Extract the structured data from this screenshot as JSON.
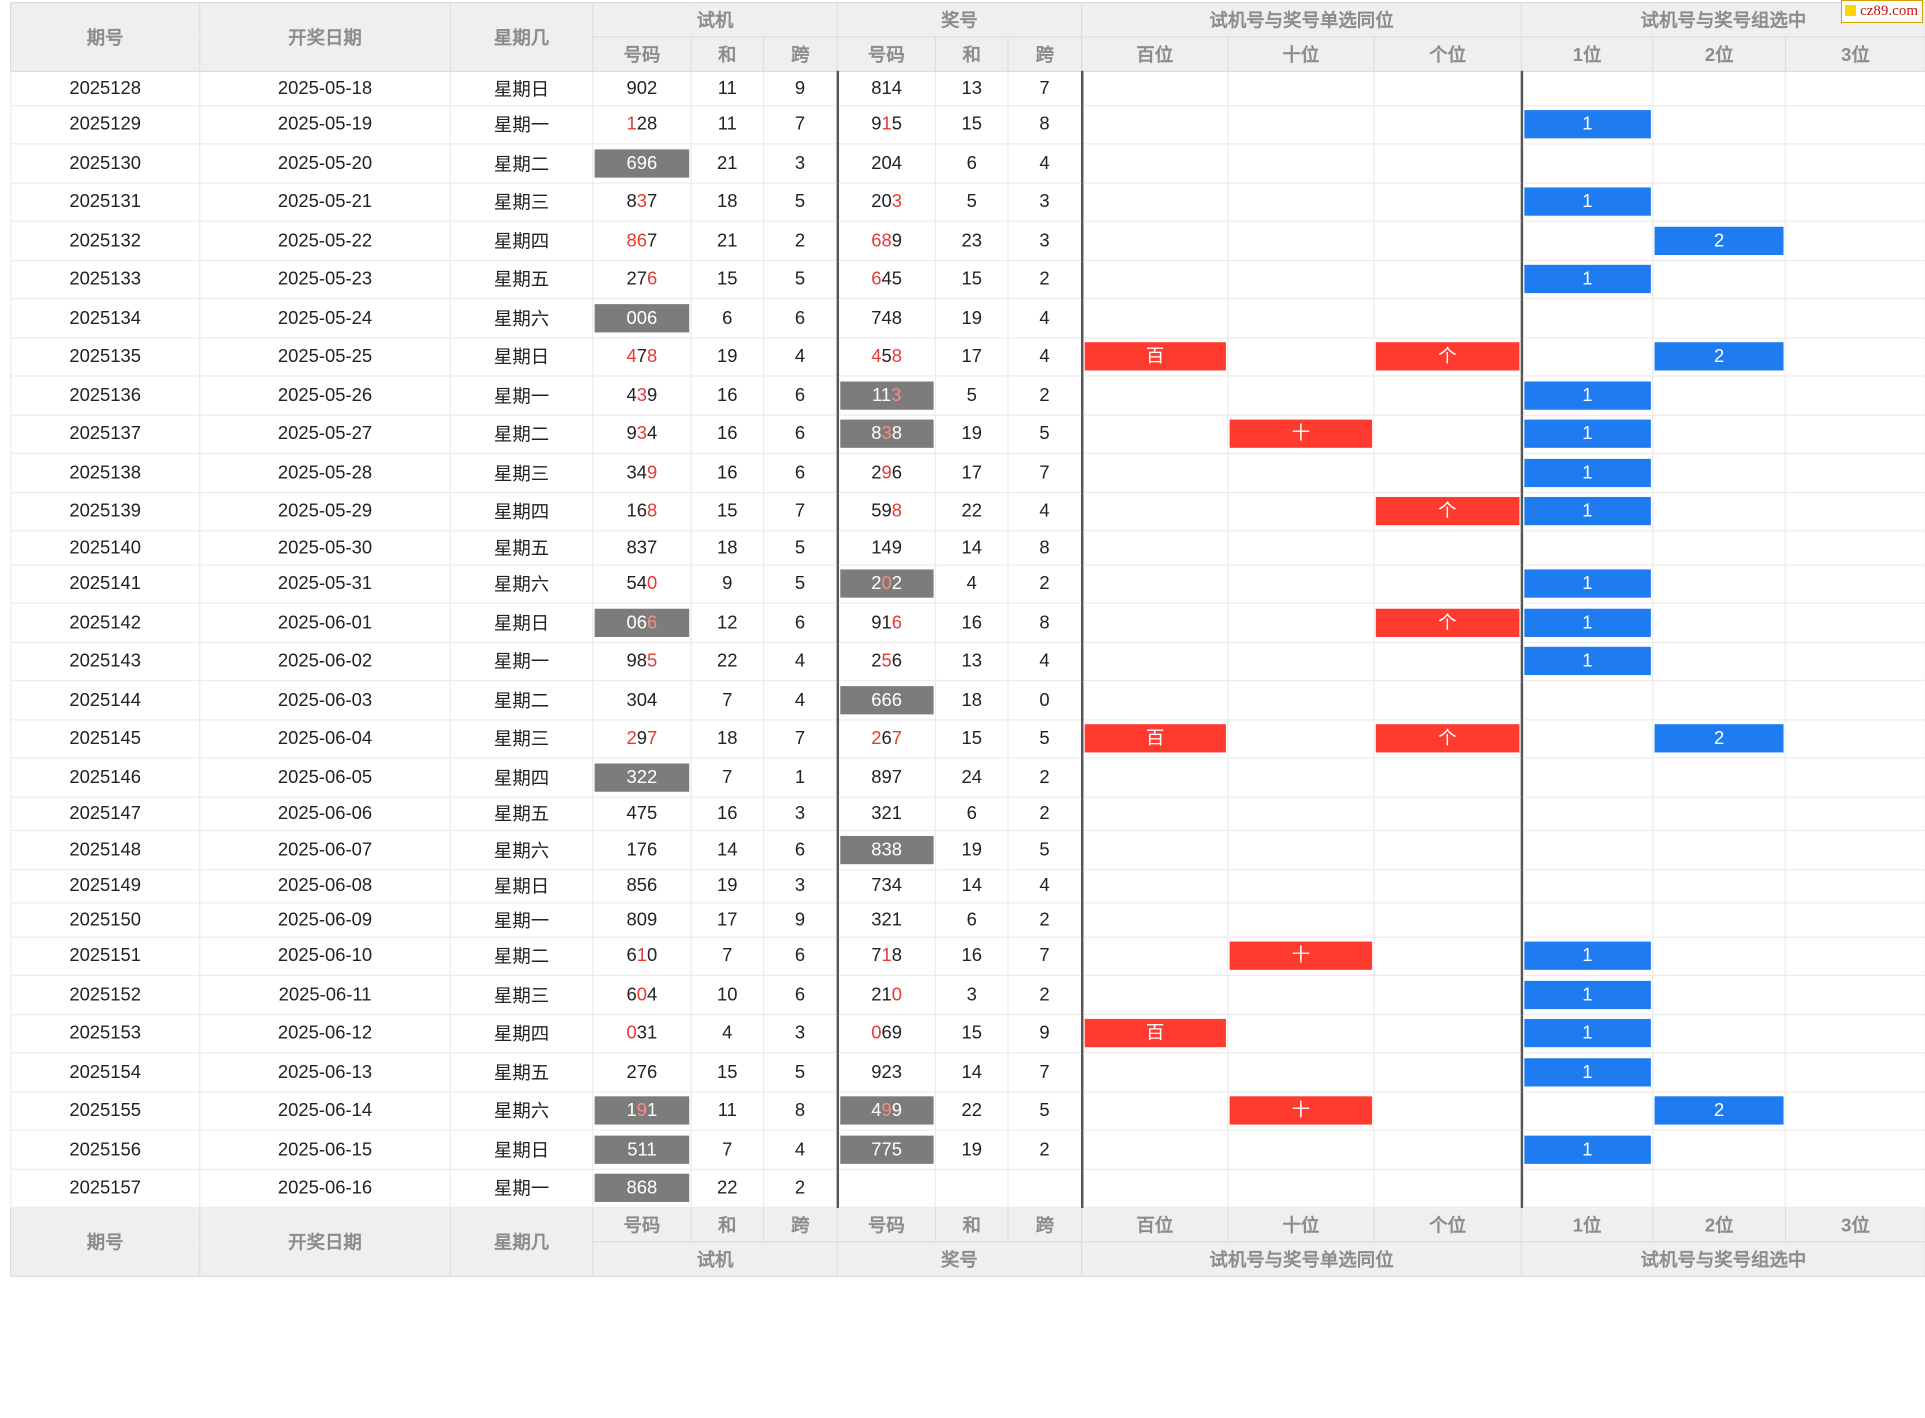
{
  "brand": "cz89.com",
  "header": {
    "issue": "期号",
    "date": "开奖日期",
    "weekday": "星期几",
    "trial": "试机",
    "prize": "奖号",
    "single": "试机号与奖号单选同位",
    "group": "试机号与奖号组选中",
    "number": "号码",
    "sum": "和",
    "span": "跨",
    "hundreds": "百位",
    "tens": "十位",
    "units": "个位",
    "pos1": "1位",
    "pos2": "2位",
    "pos3": "3位"
  },
  "rows": [
    {
      "issue": "2025128",
      "date": "2025-05-18",
      "weekday": "星期日",
      "trial": "902",
      "tsum": "11",
      "tspan": "9",
      "tgray": false,
      "thl": [],
      "prize": "814",
      "psum": "13",
      "pspan": "7",
      "pgray": false,
      "phl": [],
      "h": "",
      "t": "",
      "u": "",
      "g1": "",
      "g2": "",
      "g3": ""
    },
    {
      "issue": "2025129",
      "date": "2025-05-19",
      "weekday": "星期一",
      "trial": "128",
      "tsum": "11",
      "tspan": "7",
      "tgray": false,
      "thl": [
        0
      ],
      "prize": "915",
      "psum": "15",
      "pspan": "8",
      "pgray": false,
      "phl": [
        1
      ],
      "h": "",
      "t": "",
      "u": "",
      "g1": "1",
      "g2": "",
      "g3": ""
    },
    {
      "issue": "2025130",
      "date": "2025-05-20",
      "weekday": "星期二",
      "trial": "696",
      "tsum": "21",
      "tspan": "3",
      "tgray": true,
      "thl": [],
      "prize": "204",
      "psum": "6",
      "pspan": "4",
      "pgray": false,
      "phl": [],
      "h": "",
      "t": "",
      "u": "",
      "g1": "",
      "g2": "",
      "g3": ""
    },
    {
      "issue": "2025131",
      "date": "2025-05-21",
      "weekday": "星期三",
      "trial": "837",
      "tsum": "18",
      "tspan": "5",
      "tgray": false,
      "thl": [
        1
      ],
      "prize": "203",
      "psum": "5",
      "pspan": "3",
      "pgray": false,
      "phl": [
        2
      ],
      "h": "",
      "t": "",
      "u": "",
      "g1": "1",
      "g2": "",
      "g3": ""
    },
    {
      "issue": "2025132",
      "date": "2025-05-22",
      "weekday": "星期四",
      "trial": "867",
      "tsum": "21",
      "tspan": "2",
      "tgray": false,
      "thl": [
        0,
        1
      ],
      "prize": "689",
      "psum": "23",
      "pspan": "3",
      "pgray": false,
      "phl": [
        0,
        1
      ],
      "h": "",
      "t": "",
      "u": "",
      "g1": "",
      "g2": "2",
      "g3": ""
    },
    {
      "issue": "2025133",
      "date": "2025-05-23",
      "weekday": "星期五",
      "trial": "276",
      "tsum": "15",
      "tspan": "5",
      "tgray": false,
      "thl": [
        2
      ],
      "prize": "645",
      "psum": "15",
      "pspan": "2",
      "pgray": false,
      "phl": [
        0
      ],
      "h": "",
      "t": "",
      "u": "",
      "g1": "1",
      "g2": "",
      "g3": ""
    },
    {
      "issue": "2025134",
      "date": "2025-05-24",
      "weekday": "星期六",
      "trial": "006",
      "tsum": "6",
      "tspan": "6",
      "tgray": true,
      "thl": [],
      "prize": "748",
      "psum": "19",
      "pspan": "4",
      "pgray": false,
      "phl": [],
      "h": "",
      "t": "",
      "u": "",
      "g1": "",
      "g2": "",
      "g3": ""
    },
    {
      "issue": "2025135",
      "date": "2025-05-25",
      "weekday": "星期日",
      "trial": "478",
      "tsum": "19",
      "tspan": "4",
      "tgray": false,
      "thl": [
        0,
        2
      ],
      "prize": "458",
      "psum": "17",
      "pspan": "4",
      "pgray": false,
      "phl": [
        0,
        2
      ],
      "h": "百",
      "t": "",
      "u": "个",
      "g1": "",
      "g2": "2",
      "g3": ""
    },
    {
      "issue": "2025136",
      "date": "2025-05-26",
      "weekday": "星期一",
      "trial": "439",
      "tsum": "16",
      "tspan": "6",
      "tgray": false,
      "thl": [
        1
      ],
      "prize": "113",
      "psum": "5",
      "pspan": "2",
      "pgray": true,
      "phl": [
        2
      ],
      "h": "",
      "t": "",
      "u": "",
      "g1": "1",
      "g2": "",
      "g3": ""
    },
    {
      "issue": "2025137",
      "date": "2025-05-27",
      "weekday": "星期二",
      "trial": "934",
      "tsum": "16",
      "tspan": "6",
      "tgray": false,
      "thl": [
        1
      ],
      "prize": "838",
      "psum": "19",
      "pspan": "5",
      "pgray": true,
      "phl": [
        1
      ],
      "h": "",
      "t": "十",
      "u": "",
      "g1": "1",
      "g2": "",
      "g3": ""
    },
    {
      "issue": "2025138",
      "date": "2025-05-28",
      "weekday": "星期三",
      "trial": "349",
      "tsum": "16",
      "tspan": "6",
      "tgray": false,
      "thl": [
        2
      ],
      "prize": "296",
      "psum": "17",
      "pspan": "7",
      "pgray": false,
      "phl": [
        1
      ],
      "h": "",
      "t": "",
      "u": "",
      "g1": "1",
      "g2": "",
      "g3": ""
    },
    {
      "issue": "2025139",
      "date": "2025-05-29",
      "weekday": "星期四",
      "trial": "168",
      "tsum": "15",
      "tspan": "7",
      "tgray": false,
      "thl": [
        2
      ],
      "prize": "598",
      "psum": "22",
      "pspan": "4",
      "pgray": false,
      "phl": [
        2
      ],
      "h": "",
      "t": "",
      "u": "个",
      "g1": "1",
      "g2": "",
      "g3": ""
    },
    {
      "issue": "2025140",
      "date": "2025-05-30",
      "weekday": "星期五",
      "trial": "837",
      "tsum": "18",
      "tspan": "5",
      "tgray": false,
      "thl": [],
      "prize": "149",
      "psum": "14",
      "pspan": "8",
      "pgray": false,
      "phl": [],
      "h": "",
      "t": "",
      "u": "",
      "g1": "",
      "g2": "",
      "g3": ""
    },
    {
      "issue": "2025141",
      "date": "2025-05-31",
      "weekday": "星期六",
      "trial": "540",
      "tsum": "9",
      "tspan": "5",
      "tgray": false,
      "thl": [
        2
      ],
      "prize": "202",
      "psum": "4",
      "pspan": "2",
      "pgray": true,
      "phl": [
        1
      ],
      "h": "",
      "t": "",
      "u": "",
      "g1": "1",
      "g2": "",
      "g3": ""
    },
    {
      "issue": "2025142",
      "date": "2025-06-01",
      "weekday": "星期日",
      "trial": "066",
      "tsum": "12",
      "tspan": "6",
      "tgray": true,
      "thl": [
        2
      ],
      "prize": "916",
      "psum": "16",
      "pspan": "8",
      "pgray": false,
      "phl": [
        2
      ],
      "h": "",
      "t": "",
      "u": "个",
      "g1": "1",
      "g2": "",
      "g3": ""
    },
    {
      "issue": "2025143",
      "date": "2025-06-02",
      "weekday": "星期一",
      "trial": "985",
      "tsum": "22",
      "tspan": "4",
      "tgray": false,
      "thl": [
        2
      ],
      "prize": "256",
      "psum": "13",
      "pspan": "4",
      "pgray": false,
      "phl": [
        1
      ],
      "h": "",
      "t": "",
      "u": "",
      "g1": "1",
      "g2": "",
      "g3": ""
    },
    {
      "issue": "2025144",
      "date": "2025-06-03",
      "weekday": "星期二",
      "trial": "304",
      "tsum": "7",
      "tspan": "4",
      "tgray": false,
      "thl": [],
      "prize": "666",
      "psum": "18",
      "pspan": "0",
      "pgray": true,
      "phl": [],
      "h": "",
      "t": "",
      "u": "",
      "g1": "",
      "g2": "",
      "g3": ""
    },
    {
      "issue": "2025145",
      "date": "2025-06-04",
      "weekday": "星期三",
      "trial": "297",
      "tsum": "18",
      "tspan": "7",
      "tgray": false,
      "thl": [
        0,
        2
      ],
      "prize": "267",
      "psum": "15",
      "pspan": "5",
      "pgray": false,
      "phl": [
        0,
        2
      ],
      "h": "百",
      "t": "",
      "u": "个",
      "g1": "",
      "g2": "2",
      "g3": ""
    },
    {
      "issue": "2025146",
      "date": "2025-06-05",
      "weekday": "星期四",
      "trial": "322",
      "tsum": "7",
      "tspan": "1",
      "tgray": true,
      "thl": [],
      "prize": "897",
      "psum": "24",
      "pspan": "2",
      "pgray": false,
      "phl": [],
      "h": "",
      "t": "",
      "u": "",
      "g1": "",
      "g2": "",
      "g3": ""
    },
    {
      "issue": "2025147",
      "date": "2025-06-06",
      "weekday": "星期五",
      "trial": "475",
      "tsum": "16",
      "tspan": "3",
      "tgray": false,
      "thl": [],
      "prize": "321",
      "psum": "6",
      "pspan": "2",
      "pgray": false,
      "phl": [],
      "h": "",
      "t": "",
      "u": "",
      "g1": "",
      "g2": "",
      "g3": ""
    },
    {
      "issue": "2025148",
      "date": "2025-06-07",
      "weekday": "星期六",
      "trial": "176",
      "tsum": "14",
      "tspan": "6",
      "tgray": false,
      "thl": [],
      "prize": "838",
      "psum": "19",
      "pspan": "5",
      "pgray": true,
      "phl": [],
      "h": "",
      "t": "",
      "u": "",
      "g1": "",
      "g2": "",
      "g3": ""
    },
    {
      "issue": "2025149",
      "date": "2025-06-08",
      "weekday": "星期日",
      "trial": "856",
      "tsum": "19",
      "tspan": "3",
      "tgray": false,
      "thl": [],
      "prize": "734",
      "psum": "14",
      "pspan": "4",
      "pgray": false,
      "phl": [],
      "h": "",
      "t": "",
      "u": "",
      "g1": "",
      "g2": "",
      "g3": ""
    },
    {
      "issue": "2025150",
      "date": "2025-06-09",
      "weekday": "星期一",
      "trial": "809",
      "tsum": "17",
      "tspan": "9",
      "tgray": false,
      "thl": [],
      "prize": "321",
      "psum": "6",
      "pspan": "2",
      "pgray": false,
      "phl": [],
      "h": "",
      "t": "",
      "u": "",
      "g1": "",
      "g2": "",
      "g3": ""
    },
    {
      "issue": "2025151",
      "date": "2025-06-10",
      "weekday": "星期二",
      "trial": "610",
      "tsum": "7",
      "tspan": "6",
      "tgray": false,
      "thl": [
        1
      ],
      "prize": "718",
      "psum": "16",
      "pspan": "7",
      "pgray": false,
      "phl": [
        1
      ],
      "h": "",
      "t": "十",
      "u": "",
      "g1": "1",
      "g2": "",
      "g3": ""
    },
    {
      "issue": "2025152",
      "date": "2025-06-11",
      "weekday": "星期三",
      "trial": "604",
      "tsum": "10",
      "tspan": "6",
      "tgray": false,
      "thl": [
        1
      ],
      "prize": "210",
      "psum": "3",
      "pspan": "2",
      "pgray": false,
      "phl": [
        2
      ],
      "h": "",
      "t": "",
      "u": "",
      "g1": "1",
      "g2": "",
      "g3": ""
    },
    {
      "issue": "2025153",
      "date": "2025-06-12",
      "weekday": "星期四",
      "trial": "031",
      "tsum": "4",
      "tspan": "3",
      "tgray": false,
      "thl": [
        0
      ],
      "prize": "069",
      "psum": "15",
      "pspan": "9",
      "pgray": false,
      "phl": [
        0
      ],
      "h": "百",
      "t": "",
      "u": "",
      "g1": "1",
      "g2": "",
      "g3": ""
    },
    {
      "issue": "2025154",
      "date": "2025-06-13",
      "weekday": "星期五",
      "trial": "276",
      "tsum": "15",
      "tspan": "5",
      "tgray": false,
      "thl": [],
      "prize": "923",
      "psum": "14",
      "pspan": "7",
      "pgray": false,
      "phl": [],
      "h": "",
      "t": "",
      "u": "",
      "g1": "1",
      "g2": "",
      "g3": ""
    },
    {
      "issue": "2025155",
      "date": "2025-06-14",
      "weekday": "星期六",
      "trial": "191",
      "tsum": "11",
      "tspan": "8",
      "tgray": true,
      "thl": [
        1
      ],
      "prize": "499",
      "psum": "22",
      "pspan": "5",
      "pgray": true,
      "phl": [
        1
      ],
      "h": "",
      "t": "十",
      "u": "",
      "g1": "",
      "g2": "2",
      "g3": ""
    },
    {
      "issue": "2025156",
      "date": "2025-06-15",
      "weekday": "星期日",
      "trial": "511",
      "tsum": "7",
      "tspan": "4",
      "tgray": true,
      "thl": [],
      "prize": "775",
      "psum": "19",
      "pspan": "2",
      "pgray": true,
      "phl": [],
      "h": "",
      "t": "",
      "u": "",
      "g1": "1",
      "g2": "",
      "g3": ""
    },
    {
      "issue": "2025157",
      "date": "2025-06-16",
      "weekday": "星期一",
      "trial": "868",
      "tsum": "22",
      "tspan": "2",
      "tgray": true,
      "thl": [],
      "prize": "",
      "psum": "",
      "pspan": "",
      "pgray": false,
      "phl": [],
      "h": "",
      "t": "",
      "u": "",
      "g1": "",
      "g2": "",
      "g3": ""
    }
  ]
}
